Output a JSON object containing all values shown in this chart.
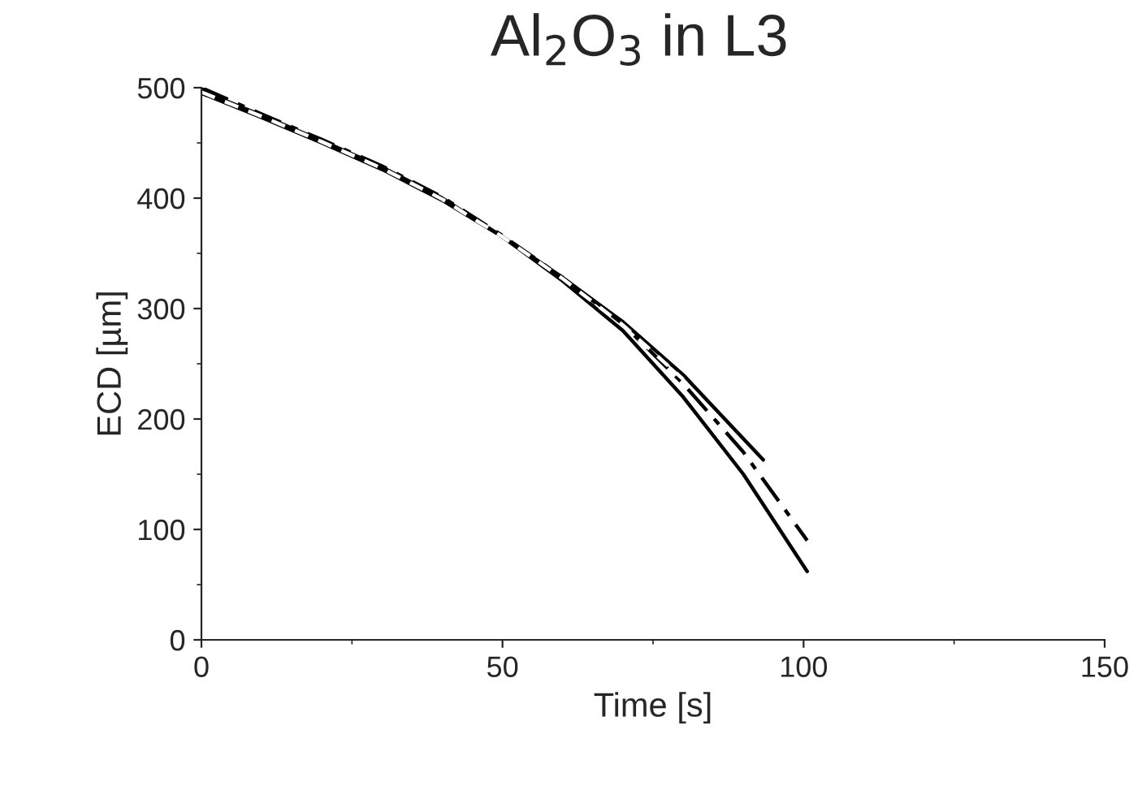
{
  "chart_data": {
    "type": "line",
    "title": "Al$_{2}$O$_{3}$ in L3",
    "xlabel": "Time [s]",
    "ylabel": "ECD [µm]",
    "xlim": [
      0,
      150
    ],
    "xticks": [
      0,
      50,
      100,
      150
    ],
    "ylim": [
      0,
      500
    ],
    "yticks": [
      0,
      100,
      200,
      300,
      400,
      500
    ],
    "grid": false,
    "legend": false,
    "marker": "none",
    "series": [
      {
        "color": "#000000",
        "line_style": "solid",
        "x": [
          0,
          10,
          20,
          30,
          40,
          50,
          60,
          70,
          80,
          93.3
        ],
        "values": [
          495,
          473,
          450,
          426,
          398,
          365,
          328,
          288,
          240,
          163
        ]
      },
      {
        "color": "#000000",
        "line_style": "solid",
        "x": [
          0,
          10,
          20,
          30,
          40,
          50,
          60,
          70,
          80,
          90,
          100.6
        ],
        "values": [
          497,
          475,
          452,
          428,
          400,
          365,
          325,
          280,
          220,
          150,
          62
        ]
      },
      {
        "color": "#000000",
        "line_style": "dashdot",
        "x": [
          0,
          10,
          20,
          30,
          40,
          50,
          60,
          70,
          80,
          90,
          100.6
        ],
        "values": [
          500,
          476,
          453,
          429,
          401,
          366,
          328,
          286,
          232,
          170,
          90
        ]
      },
      {
        "color": "#ffffff",
        "line_style": "dashed",
        "x": [
          0,
          10,
          20,
          30,
          40,
          50,
          60,
          70,
          80
        ],
        "values": [
          496,
          474,
          451,
          427,
          399,
          365,
          327,
          285,
          236
        ]
      }
    ]
  }
}
